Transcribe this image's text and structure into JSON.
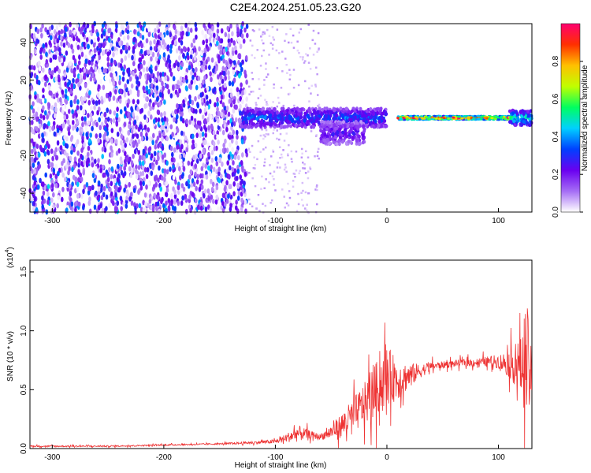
{
  "title": "C2E4.2024.251.05.23.G20",
  "chart_data": [
    {
      "type": "heatmap",
      "xlabel": "Height of straight line (km)",
      "ylabel": "Frequency (Hz)",
      "xlim": [
        -320,
        130
      ],
      "ylim": [
        -50,
        50
      ],
      "x_ticks": [
        -300,
        -200,
        -100,
        0,
        100
      ],
      "y_ticks": [
        -40,
        -20,
        0,
        20,
        40
      ],
      "colorbar": {
        "label": "Normalized spectral amplitude",
        "range": [
          0,
          1
        ],
        "ticks": [
          "0.0",
          "0.2",
          "0.4",
          "0.6",
          "0.8"
        ],
        "colors": [
          "#ffffff",
          "#a56df5",
          "#6a00f0",
          "#0040ff",
          "#00d0ff",
          "#00ff60",
          "#c0ff00",
          "#ffc000",
          "#ff3000",
          "#ff0070"
        ]
      },
      "regions": [
        {
          "name": "noise",
          "x_range": [
            -320,
            -125
          ],
          "freq_range": [
            -50,
            50
          ],
          "level": 0.15
        },
        {
          "name": "sparse",
          "x_range": [
            -125,
            -60
          ],
          "freq_range": [
            -50,
            50
          ],
          "level": 0.03
        },
        {
          "name": "signal_band",
          "x_range": [
            -130,
            0
          ],
          "center_freq": 0,
          "half_width": 5,
          "level": 0.35
        },
        {
          "name": "dip",
          "x_range": [
            -60,
            -20
          ],
          "center_freq": -8,
          "half_width": 6,
          "level": 0.25
        },
        {
          "name": "carrier",
          "x_range": [
            10,
            110
          ],
          "center_freq": 0,
          "half_width": 1,
          "level": 0.95
        },
        {
          "name": "edge",
          "x_range": [
            110,
            130
          ],
          "center_freq": 0,
          "half_width": 4,
          "level": 0.5
        }
      ]
    },
    {
      "type": "line",
      "xlabel": "Height of straight line (km)",
      "ylabel": "SNR (10 * v/v)",
      "multiplier_label": "(x10",
      "multiplier_exp": "4",
      "xlim": [
        -320,
        130
      ],
      "ylim": [
        0,
        1.6
      ],
      "x_ticks": [
        -300,
        -200,
        -100,
        0,
        100
      ],
      "y_ticks": [
        "0.0",
        "0.5",
        "1.0",
        "1.5"
      ],
      "color": "#ee3333",
      "series": [
        {
          "x": [
            -320,
            -300,
            -250,
            -200,
            -150,
            -120,
            -100,
            -90,
            -80,
            -70,
            -60,
            -50,
            -40,
            -30,
            -20,
            -10,
            0,
            10,
            20,
            30,
            40,
            50,
            60,
            70,
            80,
            90,
            100,
            110,
            120,
            125,
            130
          ],
          "y": [
            0.02,
            0.02,
            0.02,
            0.03,
            0.04,
            0.05,
            0.06,
            0.09,
            0.13,
            0.12,
            0.1,
            0.14,
            0.2,
            0.28,
            0.38,
            0.5,
            0.62,
            0.58,
            0.62,
            0.66,
            0.7,
            0.71,
            0.72,
            0.73,
            0.73,
            0.74,
            0.74,
            0.72,
            0.7,
            0.75,
            0.6
          ],
          "spread": [
            0.01,
            0.01,
            0.01,
            0.01,
            0.01,
            0.02,
            0.03,
            0.06,
            0.12,
            0.06,
            0.04,
            0.1,
            0.18,
            0.25,
            0.3,
            0.38,
            0.42,
            0.28,
            0.18,
            0.1,
            0.06,
            0.05,
            0.05,
            0.05,
            0.06,
            0.07,
            0.1,
            0.2,
            0.4,
            0.9,
            0.3
          ]
        }
      ]
    }
  ]
}
